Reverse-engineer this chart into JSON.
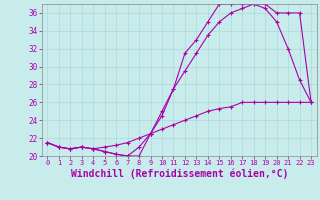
{
  "background_color": "#c8ecec",
  "grid_color": "#b0d8d8",
  "line_color": "#aa00aa",
  "marker": "+",
  "xlabel": "Windchill (Refroidissement éolien,°C)",
  "xlabel_fontsize": 7,
  "xlim": [
    -0.5,
    23.5
  ],
  "ylim": [
    20,
    37
  ],
  "yticks": [
    20,
    22,
    24,
    26,
    28,
    30,
    32,
    34,
    36
  ],
  "xticks": [
    0,
    1,
    2,
    3,
    4,
    5,
    6,
    7,
    8,
    9,
    10,
    11,
    12,
    13,
    14,
    15,
    16,
    17,
    18,
    19,
    20,
    21,
    22,
    23
  ],
  "line1_x": [
    0,
    1,
    2,
    3,
    4,
    5,
    6,
    7,
    8,
    9,
    10,
    11,
    12,
    13,
    14,
    15,
    16,
    17,
    18,
    19,
    20,
    21,
    22,
    23
  ],
  "line1_y": [
    21.5,
    21.0,
    20.8,
    21.0,
    20.8,
    20.5,
    20.2,
    20.0,
    20.0,
    22.5,
    24.5,
    27.5,
    29.5,
    31.5,
    33.5,
    35.0,
    36.0,
    36.5,
    37.0,
    37.0,
    36.0,
    36.0,
    36.0,
    26.0
  ],
  "line2_x": [
    0,
    1,
    2,
    3,
    4,
    5,
    6,
    7,
    8,
    9,
    10,
    11,
    12,
    13,
    14,
    15,
    16,
    17,
    18,
    19,
    20,
    21,
    22,
    23
  ],
  "line2_y": [
    21.5,
    21.0,
    20.8,
    21.0,
    20.8,
    20.5,
    20.2,
    20.0,
    21.0,
    22.5,
    25.0,
    27.5,
    31.5,
    33.0,
    35.0,
    37.0,
    37.0,
    37.0,
    37.0,
    36.5,
    35.0,
    32.0,
    28.5,
    26.0
  ],
  "line3_x": [
    0,
    1,
    2,
    3,
    4,
    5,
    6,
    7,
    8,
    9,
    10,
    11,
    12,
    13,
    14,
    15,
    16,
    17,
    18,
    19,
    20,
    21,
    22,
    23
  ],
  "line3_y": [
    21.5,
    21.0,
    20.8,
    21.0,
    20.8,
    21.0,
    21.2,
    21.5,
    22.0,
    22.5,
    23.0,
    23.5,
    24.0,
    24.5,
    25.0,
    25.3,
    25.5,
    26.0,
    26.0,
    26.0,
    26.0,
    26.0,
    26.0,
    26.0
  ]
}
